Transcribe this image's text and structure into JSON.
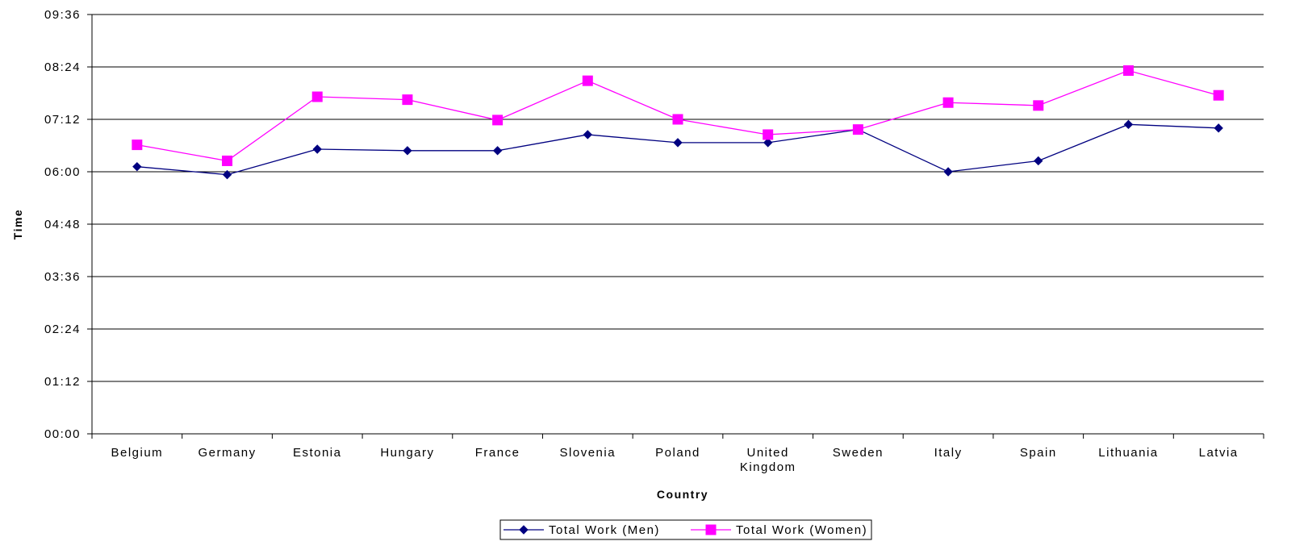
{
  "chart_data": {
    "type": "line",
    "xlabel": "Country",
    "ylabel": "Time",
    "categories": [
      [
        "Belgium"
      ],
      [
        "Germany"
      ],
      [
        "Estonia"
      ],
      [
        "Hungary"
      ],
      [
        "France"
      ],
      [
        "Slovenia"
      ],
      [
        "Poland"
      ],
      [
        "United",
        "Kingdom"
      ],
      [
        "Sweden"
      ],
      [
        "Italy"
      ],
      [
        "Spain"
      ],
      [
        "Lithuania"
      ],
      [
        "Latvia"
      ]
    ],
    "y_ticks": [
      "00:00",
      "01:12",
      "02:24",
      "03:36",
      "04:48",
      "06:00",
      "07:12",
      "08:24",
      "09:36"
    ],
    "ylim_minutes": [
      0,
      576
    ],
    "grid": true,
    "legend_position": "bottom",
    "series": [
      {
        "name": "Total Work (Men)",
        "color": "#000080",
        "marker": "diamond",
        "values_minutes": [
          367,
          356,
          391,
          389,
          389,
          411,
          400,
          400,
          418,
          360,
          375,
          425,
          420
        ]
      },
      {
        "name": "Total Work (Women)",
        "color": "#ff00ff",
        "marker": "square",
        "values_minutes": [
          397,
          375,
          463,
          459,
          431,
          485,
          432,
          411,
          418,
          455,
          451,
          499,
          465
        ]
      }
    ]
  }
}
